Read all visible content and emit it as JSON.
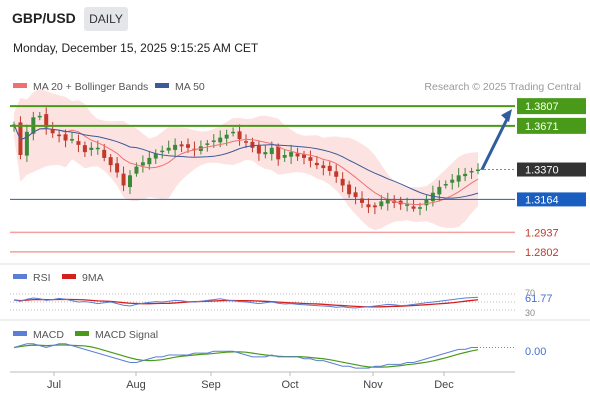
{
  "header": {
    "symbol": "GBP/USD",
    "timeframe": "DAILY",
    "datetime": "Monday, December 15, 2025 9:15:25 AM CET"
  },
  "legend": {
    "ma20": "MA 20 + Bollinger Bands",
    "ma50": "MA 50",
    "credit": "Research © 2025 Trading Central"
  },
  "colors": {
    "up": "#3a8a3a",
    "down": "#c0392b",
    "ma20": "#f07070",
    "ma50": "#3d5a99",
    "bollinger_fill": "#fde2e2",
    "resistance": "#4a9a1a",
    "support": "#1a5fc0",
    "support_low": "#f2a0a0",
    "arrow": "#2f5d9e",
    "rsi": "#5b7fd6",
    "rsi_ma": "#d52020",
    "macd": "#5b7fd6",
    "macd_signal": "#4a9a1a"
  },
  "chart_data": [
    {
      "type": "candlestick",
      "title": "GBP/USD Daily",
      "x_labels": [
        "Jul",
        "Aug",
        "Sep",
        "Oct",
        "Nov",
        "Dec"
      ],
      "ylim": [
        1.276,
        1.387
      ],
      "ohlc_trend": [
        1.368,
        1.347,
        1.363,
        1.373,
        1.374,
        1.366,
        1.362,
        1.36,
        1.357,
        1.358,
        1.354,
        1.349,
        1.352,
        1.352,
        1.345,
        1.34,
        1.335,
        1.326,
        1.333,
        1.339,
        1.342,
        1.345,
        1.348,
        1.35,
        1.352,
        1.354,
        1.353,
        1.352,
        1.351,
        1.353,
        1.355,
        1.357,
        1.359,
        1.361,
        1.363,
        1.358,
        1.356,
        1.352,
        1.348,
        1.349,
        1.352,
        1.344,
        1.347,
        1.349,
        1.346,
        1.345,
        1.343,
        1.34,
        1.338,
        1.336,
        1.332,
        1.326,
        1.32,
        1.318,
        1.314,
        1.311,
        1.311,
        1.315,
        1.316,
        1.314,
        1.313,
        1.313,
        1.31,
        1.311,
        1.316,
        1.321,
        1.325,
        1.327,
        1.33,
        1.333,
        1.334,
        1.336,
        1.337
      ],
      "levels": [
        {
          "value": 1.3807,
          "label": "1.3807",
          "kind": "resistance"
        },
        {
          "value": 1.3671,
          "label": "1.3671",
          "kind": "resistance"
        },
        {
          "value": 1.337,
          "label": "1.3370",
          "kind": "last-price"
        },
        {
          "value": 1.3164,
          "label": "1.3164",
          "kind": "pivot-support"
        },
        {
          "value": 1.2937,
          "label": "1.2937",
          "kind": "support"
        },
        {
          "value": 1.2802,
          "label": "1.2802",
          "kind": "support"
        }
      ],
      "arrow": {
        "from": 1.337,
        "to": 1.3807,
        "direction": "up"
      },
      "series": [
        {
          "name": "MA 20 + Bollinger Bands"
        },
        {
          "name": "MA 50"
        }
      ]
    },
    {
      "type": "line",
      "title": "RSI",
      "series": [
        {
          "name": "RSI",
          "last": "61.77"
        },
        {
          "name": "9MA"
        }
      ],
      "ticks": [
        "70",
        "50",
        "30"
      ],
      "ylim": [
        20,
        80
      ],
      "rsi_values": [
        55,
        52,
        57,
        60,
        58,
        54,
        56,
        59,
        57,
        53,
        50,
        51,
        49,
        46,
        48,
        50,
        46,
        42,
        40,
        44,
        47,
        49,
        51,
        50,
        52,
        54,
        53,
        51,
        50,
        52,
        54,
        56,
        58,
        55,
        53,
        51,
        50,
        48,
        46,
        48,
        50,
        47,
        45,
        46,
        44,
        43,
        42,
        41,
        40,
        39,
        37,
        38,
        36,
        35,
        37,
        38,
        40,
        42,
        44,
        43,
        41,
        42,
        44,
        46,
        48,
        50,
        52,
        54,
        56,
        58,
        60,
        61,
        61.77
      ]
    },
    {
      "type": "line",
      "title": "MACD",
      "series": [
        {
          "name": "MACD",
          "last": "0.00"
        },
        {
          "name": "MACD Signal"
        }
      ],
      "ylim": [
        -0.008,
        0.008
      ],
      "macd_values": [
        0.004,
        0.005,
        0.006,
        0.006,
        0.005,
        0.004,
        0.005,
        0.006,
        0.006,
        0.005,
        0.004,
        0.003,
        0.002,
        0.001,
        0.0,
        -0.001,
        -0.002,
        -0.003,
        -0.004,
        -0.004,
        -0.003,
        -0.002,
        -0.001,
        -0.001,
        0.0,
        0.0,
        0.0,
        0.0,
        0.001,
        0.001,
        0.001,
        0.002,
        0.002,
        0.002,
        0.002,
        0.001,
        0.0,
        -0.001,
        -0.001,
        -0.001,
        0.0,
        -0.001,
        -0.001,
        -0.001,
        -0.001,
        -0.002,
        -0.002,
        -0.003,
        -0.003,
        -0.004,
        -0.005,
        -0.006,
        -0.006,
        -0.007,
        -0.007,
        -0.007,
        -0.006,
        -0.006,
        -0.005,
        -0.005,
        -0.005,
        -0.004,
        -0.004,
        -0.003,
        -0.002,
        -0.001,
        0.0,
        0.001,
        0.002,
        0.003,
        0.003,
        0.004,
        0.004
      ]
    }
  ]
}
